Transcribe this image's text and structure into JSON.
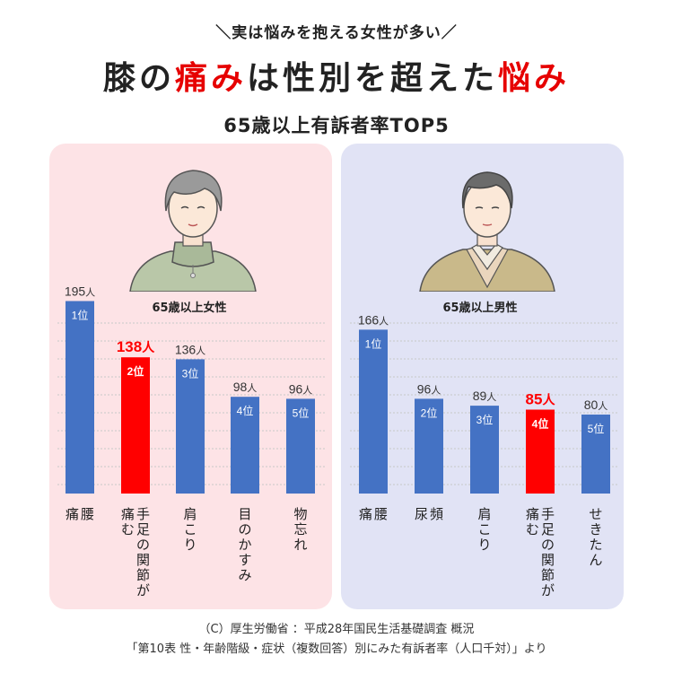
{
  "header": {
    "tagline": "＼実は悩みを抱える女性が多い／",
    "headline_parts": [
      "膝の",
      "痛み",
      "は性別を超えた",
      "悩み"
    ],
    "subtitle": "65歳以上有訴者率TOP5"
  },
  "colors": {
    "bar": "#4472c4",
    "highlight": "#ff0000",
    "female_panel": "#fde3e6",
    "male_panel": "#e1e3f5"
  },
  "footer": {
    "line1": "（C）厚生労働省 ：平成28年国民生活基礎調査 概況",
    "line2": "「第10表 性・年齢階級・症状（複数回答）別にみた有訴者率（人口千対）」より"
  },
  "chart_data": [
    {
      "type": "bar",
      "title": "65歳以上女性",
      "unit": "人",
      "categories": [
        "腰痛",
        "手足の関節が痛む",
        "肩こり",
        "目のかすみ",
        "物忘れ"
      ],
      "values": [
        195,
        138,
        136,
        98,
        96
      ],
      "ranks": [
        "1位",
        "2位",
        "3位",
        "4位",
        "5位"
      ],
      "highlight_index": 1,
      "label_columns": [
        [
          "腰",
          "痛"
        ],
        [
          "手足の関節が",
          "痛む"
        ],
        [
          "肩こり"
        ],
        [
          "目のかすみ"
        ],
        [
          "物忘れ"
        ]
      ]
    },
    {
      "type": "bar",
      "title": "65歳以上男性",
      "unit": "人",
      "categories": [
        "腰痛",
        "頻尿",
        "肩こり",
        "手足の関節が痛む",
        "せきたん"
      ],
      "values": [
        166,
        96,
        89,
        85,
        80
      ],
      "ranks": [
        "1位",
        "2位",
        "3位",
        "4位",
        "5位"
      ],
      "highlight_index": 3,
      "label_columns": [
        [
          "腰",
          "痛"
        ],
        [
          "頻",
          "尿"
        ],
        [
          "肩こり"
        ],
        [
          "手足の関節が",
          "痛む"
        ],
        [
          "せきたん"
        ]
      ]
    }
  ]
}
